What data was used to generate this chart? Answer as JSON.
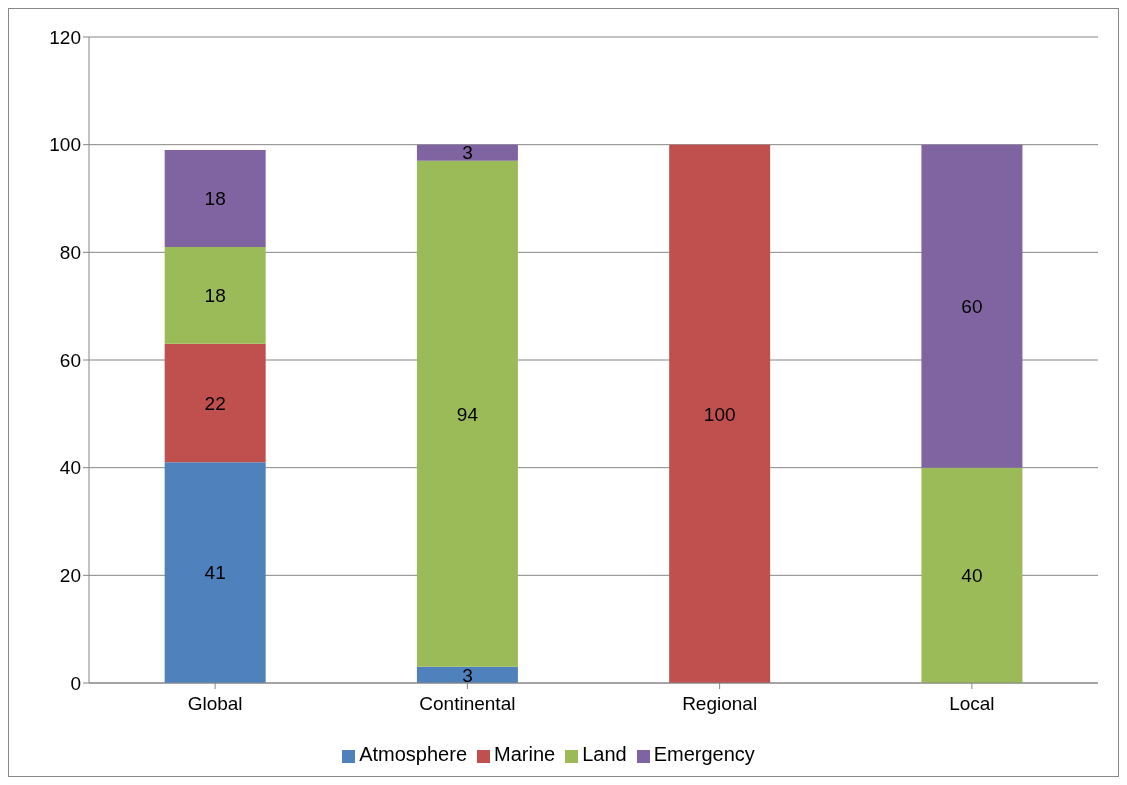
{
  "chart_data": {
    "type": "bar",
    "stacked": true,
    "categories": [
      "Global",
      "Continental",
      "Regional",
      "Local"
    ],
    "series": [
      {
        "name": "Atmosphere",
        "color": "#4f81bd",
        "values": [
          41,
          3,
          null,
          null
        ]
      },
      {
        "name": "Marine",
        "color": "#c0504d",
        "values": [
          22,
          null,
          100,
          null
        ]
      },
      {
        "name": "Land",
        "color": "#9bbb59",
        "values": [
          18,
          94,
          null,
          40
        ]
      },
      {
        "name": "Emergency",
        "color": "#8064a2",
        "values": [
          18,
          3,
          null,
          60
        ]
      }
    ],
    "ylim": [
      0,
      120
    ],
    "yticks": [
      0,
      20,
      40,
      60,
      80,
      100,
      120
    ],
    "grid": "y",
    "legend": "bottom",
    "data_labels": true
  }
}
